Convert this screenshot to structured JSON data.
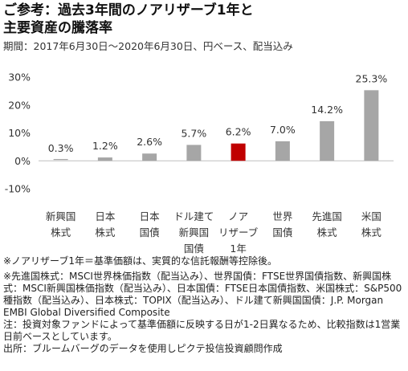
{
  "title_lines": [
    "ご参考：過去3年間のノアリザーブ1年と",
    "主要資産の騰落率"
  ],
  "subtitle": "期間：2017年6月30日～2020年6月30日、円ベース、配当込み",
  "chart_data": {
    "type": "bar",
    "categories": [
      [
        "新興国",
        "株式"
      ],
      [
        "日本",
        "株式"
      ],
      [
        "日本",
        "国債"
      ],
      [
        "ドル建て",
        "新興国",
        "国債"
      ],
      [
        "ノア",
        "リザーブ",
        "1年"
      ],
      [
        "世界",
        "国債"
      ],
      [
        "先進国",
        "株式"
      ],
      [
        "米国",
        "株式"
      ]
    ],
    "values": [
      0.3,
      1.2,
      2.6,
      5.7,
      6.2,
      7.0,
      14.2,
      25.3
    ],
    "value_labels": [
      "0.3%",
      "1.2%",
      "2.6%",
      "5.7%",
      "6.2%",
      "7.0%",
      "14.2%",
      "25.3%"
    ],
    "yticks": [
      30,
      20,
      10,
      0,
      -10
    ],
    "ytick_labels": [
      "30%",
      "20%",
      "10%",
      "0%",
      "-10%"
    ],
    "ylim": [
      -10,
      30
    ],
    "colors": {
      "default": "#a6a6a6",
      "highlight": "#c00000"
    },
    "highlight_index": 4,
    "grid": false
  },
  "notes": [
    "※ノアリザーブ1年＝基準価額は、実質的な信託報酬等控除後。",
    "※先進国株式：MSCI世界株価指数（配当込み）、世界国債：FTSE世界国債指数、新興国株式：MSCI新興国株価指数（配当込み）、日本国債：FTSE日本国債指数、米国株式：S&P500種指数（配当込み）、日本株式：TOPIX（配当込み）、ドル建て新興国国債：J.P. Morgan EMBI Global Diversified Composite",
    "注：投資対象ファンドによって基準価額に反映する日が1-2日異なるため、比較指数は1営業日前ベースとしています。",
    "出所：ブルームバーグのデータを使用しピクテ投信投資顧問作成"
  ]
}
